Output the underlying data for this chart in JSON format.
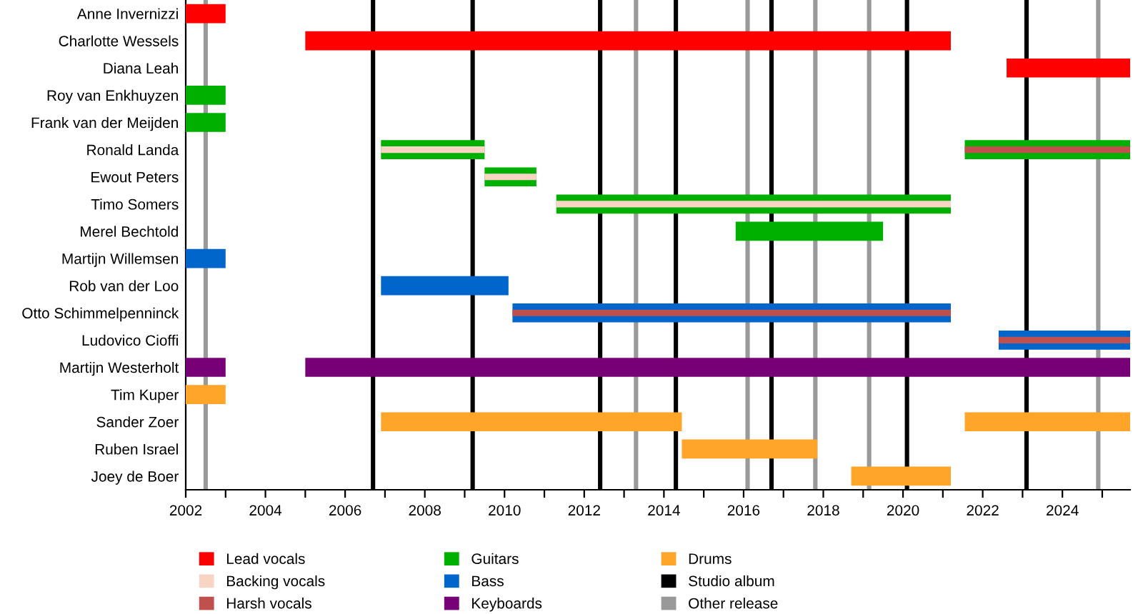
{
  "chart_data": {
    "type": "bar",
    "orientation": "horizontal",
    "categories": [
      "Anne Invernizzi",
      "Charlotte Wessels",
      "Diana Leah",
      "Roy van Enkhuyzen",
      "Frank van der Meijden",
      "Ronald Landa",
      "Ewout Peters",
      "Timo Somers",
      "Merel Bechtold",
      "Martijn Willemsen",
      "Rob van der Loo",
      "Otto Schimmelpenninck",
      "Ludovico Cioffi",
      "Martijn Westerholt",
      "Tim Kuper",
      "Sander Zoer",
      "Ruben Israel",
      "Joey de Boer"
    ],
    "series": [
      {
        "name": "Lead vocals",
        "color": "#ff0000",
        "base": [
          2002,
          2005,
          2022.6,
          null,
          null,
          null,
          null,
          null,
          null,
          null,
          null,
          null,
          null,
          null,
          null,
          null,
          null,
          null
        ],
        "values": [
          1,
          16.2,
          3.1,
          null,
          null,
          null,
          null,
          null,
          null,
          null,
          null,
          null,
          null,
          null,
          null,
          null,
          null,
          null
        ]
      },
      {
        "name": "Backing vocals",
        "color": "#f8d4c4",
        "base": [
          null,
          null,
          null,
          null,
          null,
          2006.9,
          2009.5,
          2011.3,
          null,
          null,
          null,
          null,
          null,
          null,
          null,
          null,
          null,
          null
        ],
        "values": [
          null,
          null,
          null,
          null,
          null,
          2.6,
          1.3,
          9.9,
          null,
          null,
          null,
          null,
          null,
          null,
          null,
          null,
          null,
          null
        ]
      },
      {
        "name": "Harsh vocals",
        "color": "#c0504d",
        "base": [
          null,
          null,
          null,
          null,
          null,
          2021.55,
          null,
          null,
          null,
          null,
          null,
          2010.2,
          2022.4,
          null,
          null,
          null,
          null,
          null
        ],
        "values": [
          null,
          null,
          null,
          null,
          null,
          4.15,
          null,
          null,
          null,
          null,
          null,
          11.0,
          3.3,
          null,
          null,
          null,
          null,
          null
        ]
      },
      {
        "name": "Guitars",
        "color": "#00b000",
        "base": [
          null,
          null,
          null,
          2002,
          2002,
          2006.9,
          2009.5,
          2011.3,
          2015.8,
          null,
          null,
          null,
          null,
          null,
          null,
          null,
          null,
          null
        ],
        "values": [
          null,
          null,
          null,
          1,
          1,
          2.6,
          1.3,
          9.9,
          3.7,
          null,
          null,
          null,
          null,
          null,
          null,
          null,
          null,
          null
        ]
      },
      {
        "color": "#00b000",
        "base": [
          null,
          null,
          null,
          null,
          null,
          2021.55,
          null,
          null,
          null,
          null,
          null,
          null,
          null,
          null,
          null,
          null,
          null,
          null
        ],
        "values": [
          null,
          null,
          null,
          null,
          null,
          4.15,
          null,
          null,
          null,
          null,
          null,
          null,
          null,
          null,
          null,
          null,
          null,
          null
        ]
      },
      {
        "name": "Bass",
        "color": "#0066cc",
        "base": [
          null,
          null,
          null,
          null,
          null,
          null,
          null,
          null,
          null,
          2002,
          2006.9,
          2010.2,
          2022.4,
          null,
          null,
          null,
          null,
          null
        ],
        "values": [
          null,
          null,
          null,
          null,
          null,
          null,
          null,
          null,
          null,
          1,
          3.2,
          11.0,
          3.3,
          null,
          null,
          null,
          null,
          null
        ]
      },
      {
        "name": "Keyboards",
        "color": "#770077",
        "base": [
          null,
          null,
          null,
          null,
          null,
          null,
          null,
          null,
          null,
          null,
          null,
          null,
          null,
          2002,
          null,
          null,
          null,
          null
        ],
        "values": [
          null,
          null,
          null,
          null,
          null,
          null,
          null,
          null,
          null,
          null,
          null,
          null,
          null,
          1,
          null,
          null,
          null,
          null
        ]
      },
      {
        "color": "#770077",
        "base": [
          null,
          null,
          null,
          null,
          null,
          null,
          null,
          null,
          null,
          null,
          null,
          null,
          null,
          2005,
          null,
          null,
          null,
          null
        ],
        "values": [
          null,
          null,
          null,
          null,
          null,
          null,
          null,
          null,
          null,
          null,
          null,
          null,
          null,
          20.7,
          null,
          null,
          null,
          null
        ]
      },
      {
        "name": "Drums",
        "color": "#ffa52a",
        "base": [
          null,
          null,
          null,
          null,
          null,
          null,
          null,
          null,
          null,
          null,
          null,
          null,
          null,
          null,
          2002,
          2006.9,
          2014.45,
          2018.7
        ],
        "values": [
          null,
          null,
          null,
          null,
          null,
          null,
          null,
          null,
          null,
          null,
          null,
          null,
          null,
          null,
          1,
          7.55,
          3.4,
          2.5
        ]
      },
      {
        "color": "#ffa52a",
        "base": [
          null,
          null,
          null,
          null,
          null,
          null,
          null,
          null,
          null,
          null,
          null,
          null,
          null,
          null,
          null,
          2021.55,
          null,
          null
        ],
        "values": [
          null,
          null,
          null,
          null,
          null,
          null,
          null,
          null,
          null,
          null,
          null,
          null,
          null,
          null,
          null,
          4.15,
          null,
          null
        ]
      }
    ],
    "ref_lines": [
      {
        "axis": "x",
        "value": 2006.7,
        "label": "Studio album",
        "color": "#000000"
      },
      {
        "axis": "x",
        "value": 2009.2,
        "color": "#000000"
      },
      {
        "axis": "x",
        "value": 2012.4,
        "color": "#000000"
      },
      {
        "axis": "x",
        "value": 2014.3,
        "color": "#000000"
      },
      {
        "axis": "x",
        "value": 2016.7,
        "color": "#000000"
      },
      {
        "axis": "x",
        "value": 2020.1,
        "color": "#000000"
      },
      {
        "axis": "x",
        "value": 2023.1,
        "color": "#000000"
      },
      {
        "axis": "x",
        "value": 2002.5,
        "label": "Other release",
        "color": "#999999"
      },
      {
        "axis": "x",
        "value": 2013.3,
        "color": "#999999"
      },
      {
        "axis": "x",
        "value": 2016.1,
        "color": "#999999"
      },
      {
        "axis": "x",
        "value": 2017.8,
        "color": "#999999"
      },
      {
        "axis": "x",
        "value": 2019.15,
        "color": "#999999"
      },
      {
        "axis": "x",
        "value": 2024.9,
        "color": "#999999"
      }
    ],
    "xlim": [
      2002,
      2025.7
    ],
    "xticks": [
      2002,
      {
        "value": 2003,
        "label": null
      },
      2004,
      {
        "value": 2005,
        "label": null
      },
      2006,
      {
        "value": 2007,
        "label": null
      },
      2008,
      {
        "value": 2009,
        "label": null
      },
      2010,
      {
        "value": 2011,
        "label": null
      },
      2012,
      {
        "value": 2013,
        "label": null
      },
      2014,
      {
        "value": 2015,
        "label": null
      },
      2016,
      {
        "value": 2017,
        "label": null
      },
      2018,
      {
        "value": 2019,
        "label": null
      },
      2020,
      {
        "value": 2021,
        "label": null
      },
      2022,
      {
        "value": 2023,
        "label": null
      },
      2024,
      {
        "value": 2025,
        "label": null
      }
    ],
    "grid": false,
    "legend": "bottom"
  }
}
